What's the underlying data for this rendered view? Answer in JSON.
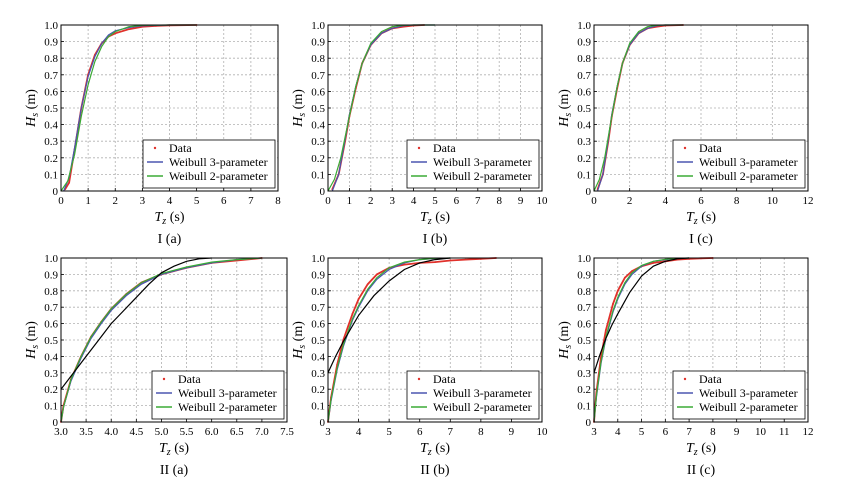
{
  "legend_labels": [
    "Data",
    "Weibull 3-parameter",
    "Weibull 2-parameter"
  ],
  "colors": {
    "data": "#e0312b",
    "w3": "#4a55b0",
    "w2": "#3aaa35",
    "extra": "#000000"
  },
  "chart_data": [
    {
      "type": "line",
      "caption": "I (a)",
      "xlabel_main": "T",
      "xlabel_sub": "z",
      "xlabel_unit": " (s)",
      "ylabel_main": "H",
      "ylabel_sub": "s",
      "ylabel_unit": " (m)",
      "xlim": [
        0,
        8
      ],
      "ylim": [
        0,
        1
      ],
      "xticks": [
        "0",
        "1",
        "2",
        "3",
        "4",
        "5",
        "6",
        "7",
        "8"
      ],
      "yticks": [
        "0",
        "0.1",
        "0.2",
        "0.3",
        "0.4",
        "0.5",
        "0.6",
        "0.7",
        "0.8",
        "0.9",
        "1.0"
      ],
      "legend_pos": "bottom-right",
      "series": [
        {
          "name": "Data",
          "style": "data",
          "x": [
            0.15,
            0.3,
            0.5,
            0.75,
            1.0,
            1.25,
            1.5,
            1.75,
            2.0,
            2.5,
            3.0,
            3.5,
            4.0,
            5.0
          ],
          "y": [
            0.01,
            0.05,
            0.25,
            0.5,
            0.7,
            0.82,
            0.89,
            0.93,
            0.95,
            0.975,
            0.99,
            0.995,
            0.998,
            1.0
          ]
        },
        {
          "name": "Weibull 3-parameter",
          "style": "w3",
          "x": [
            0.1,
            0.3,
            0.5,
            0.75,
            1.0,
            1.25,
            1.5,
            1.75,
            2.0,
            2.5,
            3.0,
            4.0,
            5.0
          ],
          "y": [
            0.0,
            0.08,
            0.26,
            0.5,
            0.69,
            0.81,
            0.89,
            0.94,
            0.965,
            0.985,
            0.995,
            1.0,
            1.0
          ]
        },
        {
          "name": "Weibull 2-parameter",
          "style": "w2",
          "x": [
            0.0,
            0.25,
            0.5,
            0.75,
            1.0,
            1.25,
            1.5,
            1.75,
            2.0,
            2.5,
            3.0,
            4.0,
            5.0
          ],
          "y": [
            0.0,
            0.06,
            0.22,
            0.45,
            0.64,
            0.78,
            0.87,
            0.93,
            0.96,
            0.99,
            0.998,
            1.0,
            1.0
          ]
        }
      ]
    },
    {
      "type": "line",
      "caption": "I (b)",
      "xlabel_main": "T",
      "xlabel_sub": "z",
      "xlabel_unit": " (s)",
      "ylabel_main": "H",
      "ylabel_sub": "s",
      "ylabel_unit": " (m)",
      "xlim": [
        0,
        10
      ],
      "ylim": [
        0,
        1
      ],
      "xticks": [
        "0",
        "1",
        "2",
        "3",
        "4",
        "5",
        "6",
        "7",
        "8",
        "9",
        "10"
      ],
      "yticks": [
        "0",
        "0.1",
        "0.2",
        "0.3",
        "0.4",
        "0.5",
        "0.6",
        "0.7",
        "0.8",
        "0.9",
        "1.0"
      ],
      "legend_pos": "bottom-right",
      "series": [
        {
          "name": "Data",
          "style": "data",
          "x": [
            0.2,
            0.5,
            0.8,
            1.0,
            1.3,
            1.6,
            2.0,
            2.5,
            3.0,
            3.5,
            4.0,
            4.5
          ],
          "y": [
            0.01,
            0.1,
            0.3,
            0.45,
            0.62,
            0.77,
            0.88,
            0.95,
            0.98,
            0.99,
            0.997,
            1.0
          ]
        },
        {
          "name": "Weibull 3-parameter",
          "style": "w3",
          "x": [
            0.2,
            0.5,
            0.8,
            1.0,
            1.3,
            1.6,
            2.0,
            2.5,
            3.0,
            3.5,
            4.0,
            5.0
          ],
          "y": [
            0.0,
            0.1,
            0.31,
            0.46,
            0.63,
            0.77,
            0.88,
            0.95,
            0.98,
            0.995,
            1.0,
            1.0
          ]
        },
        {
          "name": "Weibull 2-parameter",
          "style": "w2",
          "x": [
            0.0,
            0.3,
            0.6,
            1.0,
            1.3,
            1.6,
            2.0,
            2.5,
            3.0,
            3.5,
            4.0,
            5.0
          ],
          "y": [
            0.0,
            0.07,
            0.2,
            0.45,
            0.63,
            0.77,
            0.89,
            0.96,
            0.99,
            0.998,
            1.0,
            1.0
          ]
        }
      ]
    },
    {
      "type": "line",
      "caption": "I (c)",
      "xlabel_main": "T",
      "xlabel_sub": "z",
      "xlabel_unit": " (s)",
      "ylabel_main": "H",
      "ylabel_sub": "s",
      "ylabel_unit": " (m)",
      "xlim": [
        0,
        12
      ],
      "ylim": [
        0,
        1
      ],
      "xticks": [
        "0",
        "2",
        "4",
        "6",
        "8",
        "10",
        "12"
      ],
      "yticks": [
        "0",
        "0.1",
        "0.2",
        "0.3",
        "0.4",
        "0.5",
        "0.6",
        "0.7",
        "0.8",
        "0.9",
        "1.0"
      ],
      "legend_pos": "bottom-right",
      "series": [
        {
          "name": "Data",
          "style": "data",
          "x": [
            0.2,
            0.5,
            0.8,
            1.0,
            1.3,
            1.6,
            2.0,
            2.5,
            3.0,
            3.5,
            4.0,
            5.0
          ],
          "y": [
            0.01,
            0.1,
            0.3,
            0.45,
            0.62,
            0.77,
            0.88,
            0.95,
            0.98,
            0.99,
            0.997,
            1.0
          ]
        },
        {
          "name": "Weibull 3-parameter",
          "style": "w3",
          "x": [
            0.2,
            0.5,
            0.8,
            1.0,
            1.3,
            1.6,
            2.0,
            2.5,
            3.0,
            3.5,
            4.0,
            5.0
          ],
          "y": [
            0.0,
            0.1,
            0.31,
            0.46,
            0.63,
            0.77,
            0.88,
            0.95,
            0.98,
            0.995,
            1.0,
            1.0
          ]
        },
        {
          "name": "Weibull 2-parameter",
          "style": "w2",
          "x": [
            0.0,
            0.3,
            0.6,
            1.0,
            1.3,
            1.6,
            2.0,
            2.5,
            3.0,
            3.5,
            4.0,
            5.0
          ],
          "y": [
            0.0,
            0.07,
            0.2,
            0.45,
            0.63,
            0.77,
            0.89,
            0.96,
            0.99,
            0.998,
            1.0,
            1.0
          ]
        }
      ]
    },
    {
      "type": "line",
      "caption": "II (a)",
      "xlabel_main": "T",
      "xlabel_sub": "z",
      "xlabel_unit": " (s)",
      "ylabel_main": "H",
      "ylabel_sub": "s",
      "ylabel_unit": " (m)",
      "xlim": [
        3.0,
        7.5
      ],
      "ylim": [
        0,
        1
      ],
      "xticks": [
        "3.0",
        "3.5",
        "4.0",
        "4.5",
        "5.0",
        "5.5",
        "6.0",
        "6.5",
        "7.0",
        "7.5"
      ],
      "yticks": [
        "0",
        "0.1",
        "0.2",
        "0.3",
        "0.4",
        "0.5",
        "0.6",
        "0.7",
        "0.8",
        "0.9",
        "1.0"
      ],
      "legend_pos": "bottom-right",
      "series": [
        {
          "name": "Data",
          "style": "data",
          "x": [
            3.0,
            3.05,
            3.2,
            3.4,
            3.6,
            3.8,
            4.0,
            4.3,
            4.6,
            5.0,
            5.5,
            6.0,
            6.5,
            7.0
          ],
          "y": [
            0.0,
            0.1,
            0.26,
            0.4,
            0.52,
            0.61,
            0.69,
            0.78,
            0.85,
            0.9,
            0.94,
            0.97,
            0.985,
            1.0
          ]
        },
        {
          "name": "Weibull 3-parameter",
          "style": "w3",
          "x": [
            3.0,
            3.05,
            3.2,
            3.4,
            3.6,
            3.8,
            4.0,
            4.3,
            4.6,
            5.0,
            5.5,
            6.0,
            6.5,
            7.0
          ],
          "y": [
            0.0,
            0.09,
            0.25,
            0.39,
            0.51,
            0.6,
            0.68,
            0.77,
            0.84,
            0.9,
            0.94,
            0.97,
            0.99,
            1.0
          ]
        },
        {
          "name": "Weibull 2-parameter",
          "style": "w2",
          "x": [
            3.0,
            3.05,
            3.2,
            3.4,
            3.6,
            3.8,
            4.0,
            4.3,
            4.6,
            5.0,
            5.5,
            6.0,
            6.5,
            7.0
          ],
          "y": [
            0.0,
            0.09,
            0.26,
            0.4,
            0.52,
            0.61,
            0.69,
            0.78,
            0.85,
            0.905,
            0.945,
            0.975,
            0.99,
            1.0
          ]
        },
        {
          "name": "",
          "style": "extra",
          "x": [
            3.0,
            3.25,
            3.5,
            3.75,
            4.0,
            4.25,
            4.5,
            4.75,
            5.0,
            5.25,
            5.5,
            5.75,
            6.0
          ],
          "y": [
            0.2,
            0.3,
            0.4,
            0.5,
            0.6,
            0.68,
            0.76,
            0.84,
            0.91,
            0.95,
            0.98,
            0.995,
            1.0
          ]
        }
      ]
    },
    {
      "type": "line",
      "caption": "II (b)",
      "xlabel_main": "T",
      "xlabel_sub": "z",
      "xlabel_unit": " (s)",
      "ylabel_main": "H",
      "ylabel_sub": "s",
      "ylabel_unit": " (m)",
      "xlim": [
        3,
        10
      ],
      "ylim": [
        0,
        1
      ],
      "xticks": [
        "3",
        "4",
        "5",
        "6",
        "7",
        "8",
        "9",
        "10"
      ],
      "yticks": [
        "0",
        "0.1",
        "0.2",
        "0.3",
        "0.4",
        "0.5",
        "0.6",
        "0.7",
        "0.8",
        "0.9",
        "1.0"
      ],
      "legend_pos": "bottom-right",
      "series": [
        {
          "name": "Data",
          "style": "data",
          "x": [
            3.0,
            3.1,
            3.3,
            3.5,
            3.8,
            4.0,
            4.3,
            4.6,
            5.0,
            5.5,
            6.0,
            6.5,
            7.0,
            7.5,
            8.0,
            8.5
          ],
          "y": [
            0.0,
            0.15,
            0.35,
            0.5,
            0.66,
            0.75,
            0.84,
            0.9,
            0.94,
            0.96,
            0.97,
            0.975,
            0.985,
            0.99,
            0.995,
            1.0
          ]
        },
        {
          "name": "Weibull 3-parameter",
          "style": "w3",
          "x": [
            3.0,
            3.1,
            3.3,
            3.5,
            3.8,
            4.0,
            4.3,
            4.6,
            5.0,
            5.5,
            6.0,
            6.5,
            7.0
          ],
          "y": [
            0.0,
            0.13,
            0.32,
            0.46,
            0.62,
            0.7,
            0.8,
            0.87,
            0.93,
            0.97,
            0.99,
            0.997,
            1.0
          ]
        },
        {
          "name": "Weibull 2-parameter",
          "style": "w2",
          "x": [
            3.0,
            3.1,
            3.3,
            3.5,
            3.8,
            4.0,
            4.3,
            4.6,
            5.0,
            5.5,
            6.0,
            6.5,
            7.0
          ],
          "y": [
            0.0,
            0.14,
            0.33,
            0.47,
            0.63,
            0.71,
            0.81,
            0.88,
            0.94,
            0.975,
            0.99,
            0.998,
            1.0
          ]
        },
        {
          "name": "",
          "style": "extra",
          "x": [
            3.0,
            3.25,
            3.5,
            3.75,
            4.0,
            4.5,
            5.0,
            5.5,
            6.0,
            6.5,
            7.0
          ],
          "y": [
            0.3,
            0.4,
            0.49,
            0.57,
            0.65,
            0.77,
            0.86,
            0.93,
            0.97,
            0.99,
            1.0
          ]
        }
      ]
    },
    {
      "type": "line",
      "caption": "II (c)",
      "xlabel_main": "T",
      "xlabel_sub": "z",
      "xlabel_unit": " (s)",
      "ylabel_main": "H",
      "ylabel_sub": "s",
      "ylabel_unit": " (m)",
      "xlim": [
        3,
        12
      ],
      "ylim": [
        0,
        1
      ],
      "xticks": [
        "3",
        "4",
        "5",
        "6",
        "7",
        "8",
        "9",
        "10",
        "11",
        "12"
      ],
      "yticks": [
        "0",
        "0.1",
        "0.2",
        "0.3",
        "0.4",
        "0.5",
        "0.6",
        "0.7",
        "0.8",
        "0.9",
        "1.0"
      ],
      "legend_pos": "bottom-right",
      "series": [
        {
          "name": "Data",
          "style": "data",
          "x": [
            3.0,
            3.1,
            3.3,
            3.5,
            3.8,
            4.0,
            4.3,
            4.6,
            5.0,
            5.5,
            6.0,
            6.5,
            7.0,
            7.5,
            8.0
          ],
          "y": [
            0.0,
            0.18,
            0.4,
            0.56,
            0.72,
            0.8,
            0.88,
            0.92,
            0.95,
            0.97,
            0.98,
            0.99,
            0.995,
            0.998,
            1.0
          ]
        },
        {
          "name": "Weibull 3-parameter",
          "style": "w3",
          "x": [
            3.0,
            3.1,
            3.3,
            3.5,
            3.8,
            4.0,
            4.3,
            4.6,
            5.0,
            5.5,
            6.0,
            6.5,
            7.0
          ],
          "y": [
            0.0,
            0.15,
            0.36,
            0.51,
            0.67,
            0.75,
            0.84,
            0.9,
            0.95,
            0.98,
            0.99,
            0.998,
            1.0
          ]
        },
        {
          "name": "Weibull 2-parameter",
          "style": "w2",
          "x": [
            3.0,
            3.1,
            3.3,
            3.5,
            3.8,
            4.0,
            4.3,
            4.6,
            5.0,
            5.5,
            6.0,
            6.5,
            7.0
          ],
          "y": [
            0.0,
            0.16,
            0.37,
            0.52,
            0.68,
            0.76,
            0.85,
            0.91,
            0.955,
            0.98,
            0.992,
            0.998,
            1.0
          ]
        },
        {
          "name": "",
          "style": "extra",
          "x": [
            3.0,
            3.25,
            3.5,
            3.75,
            4.0,
            4.5,
            5.0,
            5.5,
            6.0,
            6.5,
            7.0
          ],
          "y": [
            0.3,
            0.41,
            0.51,
            0.59,
            0.66,
            0.79,
            0.89,
            0.95,
            0.98,
            0.995,
            1.0
          ]
        }
      ]
    }
  ]
}
